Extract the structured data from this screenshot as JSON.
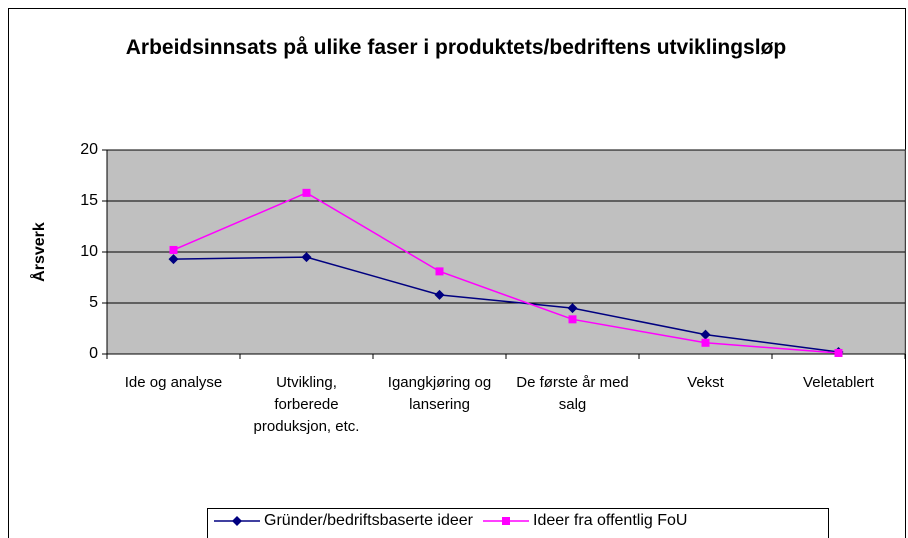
{
  "chart_data": {
    "type": "line",
    "title": "Arbeidsinnsats på ulike faser i produktets/bedriftens utviklingsløp",
    "ylabel": "Årsverk",
    "categories": [
      "Ide og analyse",
      "Utvikling, forberede produksjon, etc.",
      "Igangkjøring og lansering",
      "De første år med salg",
      "Vekst",
      "Veletablert"
    ],
    "series": [
      {
        "name": "Gründer/bedriftsbaserte ideer",
        "color": "#000080",
        "marker": "diamond",
        "values": [
          9.3,
          9.5,
          5.8,
          4.5,
          1.9,
          0.2
        ]
      },
      {
        "name": "Ideer fra offentlig FoU",
        "color": "#ff00ff",
        "marker": "square",
        "values": [
          10.2,
          15.8,
          8.1,
          3.4,
          1.1,
          0.1
        ]
      }
    ],
    "ylim": [
      0,
      20
    ],
    "yticks": [
      0,
      5,
      10,
      15,
      20
    ],
    "grid": true,
    "plot_background": "#c0c0c0",
    "legend": "bottom"
  }
}
